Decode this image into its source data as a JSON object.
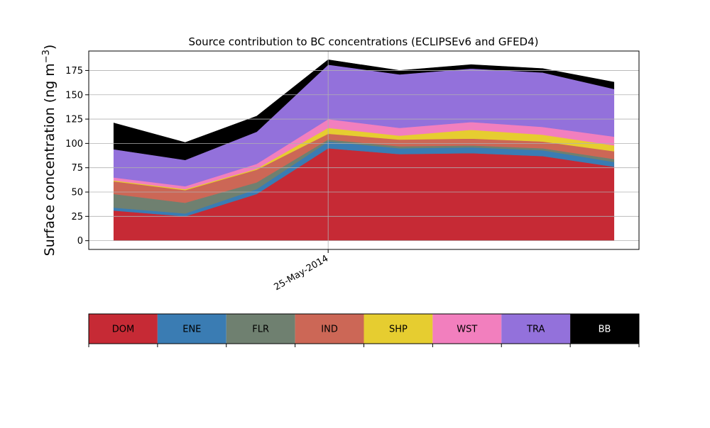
{
  "chart_data": {
    "type": "area",
    "stacked": true,
    "title": "Source contribution to BC concentrations (ECLIPSEv6 and GFED4)",
    "ylabel": "Surface concentration (ng m⁻³)",
    "ylabel_main": "Surface concentration (ng m",
    "ylabel_sup": "−3",
    "ylabel_close": ")",
    "ylim": [
      -9,
      195
    ],
    "yticks": [
      0,
      25,
      50,
      75,
      100,
      125,
      150,
      175
    ],
    "x": [
      0,
      1,
      2,
      3,
      4,
      5,
      6,
      7
    ],
    "xlim": [
      -0.35,
      7.35
    ],
    "xtick_labels": [
      {
        "x": 3,
        "label": "25-May-2014"
      }
    ],
    "grid": true,
    "series": [
      {
        "name": "DOM",
        "color": "#c62a35",
        "values": [
          31,
          25,
          48,
          95,
          89,
          90,
          87,
          76
        ]
      },
      {
        "name": "ENE",
        "color": "#3a7cb3",
        "values": [
          3,
          3,
          5,
          7,
          6,
          6,
          6,
          5
        ]
      },
      {
        "name": "FLR",
        "color": "#6f8070",
        "values": [
          14,
          11,
          7,
          2,
          2,
          2,
          2,
          3
        ]
      },
      {
        "name": "IND",
        "color": "#cc6756",
        "values": [
          13,
          13,
          13,
          6,
          7,
          7,
          7,
          8
        ]
      },
      {
        "name": "SHP",
        "color": "#e6cd30",
        "values": [
          1,
          1,
          1,
          6,
          4,
          9,
          7,
          6
        ]
      },
      {
        "name": "WST",
        "color": "#f27fbe",
        "values": [
          3,
          3,
          5,
          9,
          8,
          8,
          8,
          9
        ]
      },
      {
        "name": "TRA",
        "color": "#9371db",
        "values": [
          29,
          27,
          33,
          56,
          55,
          55,
          56,
          49
        ]
      },
      {
        "name": "BB",
        "color": "#000000",
        "values": [
          27,
          18,
          16,
          5,
          4,
          4,
          4,
          7
        ]
      }
    ],
    "legend": {
      "placement": "bottom",
      "text_colors": [
        "#000000",
        "#000000",
        "#000000",
        "#000000",
        "#000000",
        "#000000",
        "#000000",
        "#ffffff"
      ]
    }
  }
}
